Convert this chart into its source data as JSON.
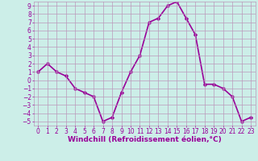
{
  "x": [
    0,
    1,
    2,
    3,
    4,
    5,
    6,
    7,
    8,
    9,
    10,
    11,
    12,
    13,
    14,
    15,
    16,
    17,
    18,
    19,
    20,
    21,
    22,
    23
  ],
  "y": [
    1,
    2,
    1,
    0.5,
    -1,
    -1.5,
    -2,
    -5,
    -4.5,
    -1.5,
    1,
    3,
    7,
    7.5,
    9,
    9.5,
    7.5,
    5.5,
    -0.5,
    -0.5,
    -1,
    -2,
    -5,
    -4.5
  ],
  "line_color": "#990099",
  "marker_color": "#990099",
  "bg_color": "#cceee8",
  "grid_color": "#bb99bb",
  "xlabel": "Windchill (Refroidissement éolien,°C)",
  "xlim": [
    -0.5,
    23.5
  ],
  "ylim": [
    -5.5,
    9.5
  ],
  "xticks": [
    0,
    1,
    2,
    3,
    4,
    5,
    6,
    7,
    8,
    9,
    10,
    11,
    12,
    13,
    14,
    15,
    16,
    17,
    18,
    19,
    20,
    21,
    22,
    23
  ],
  "yticks": [
    -5,
    -4,
    -3,
    -2,
    -1,
    0,
    1,
    2,
    3,
    4,
    5,
    6,
    7,
    8,
    9
  ],
  "font_color": "#990099",
  "font_size": 5.5,
  "xlabel_fontsize": 6.5,
  "line_width": 1.2,
  "marker_size": 2.5
}
